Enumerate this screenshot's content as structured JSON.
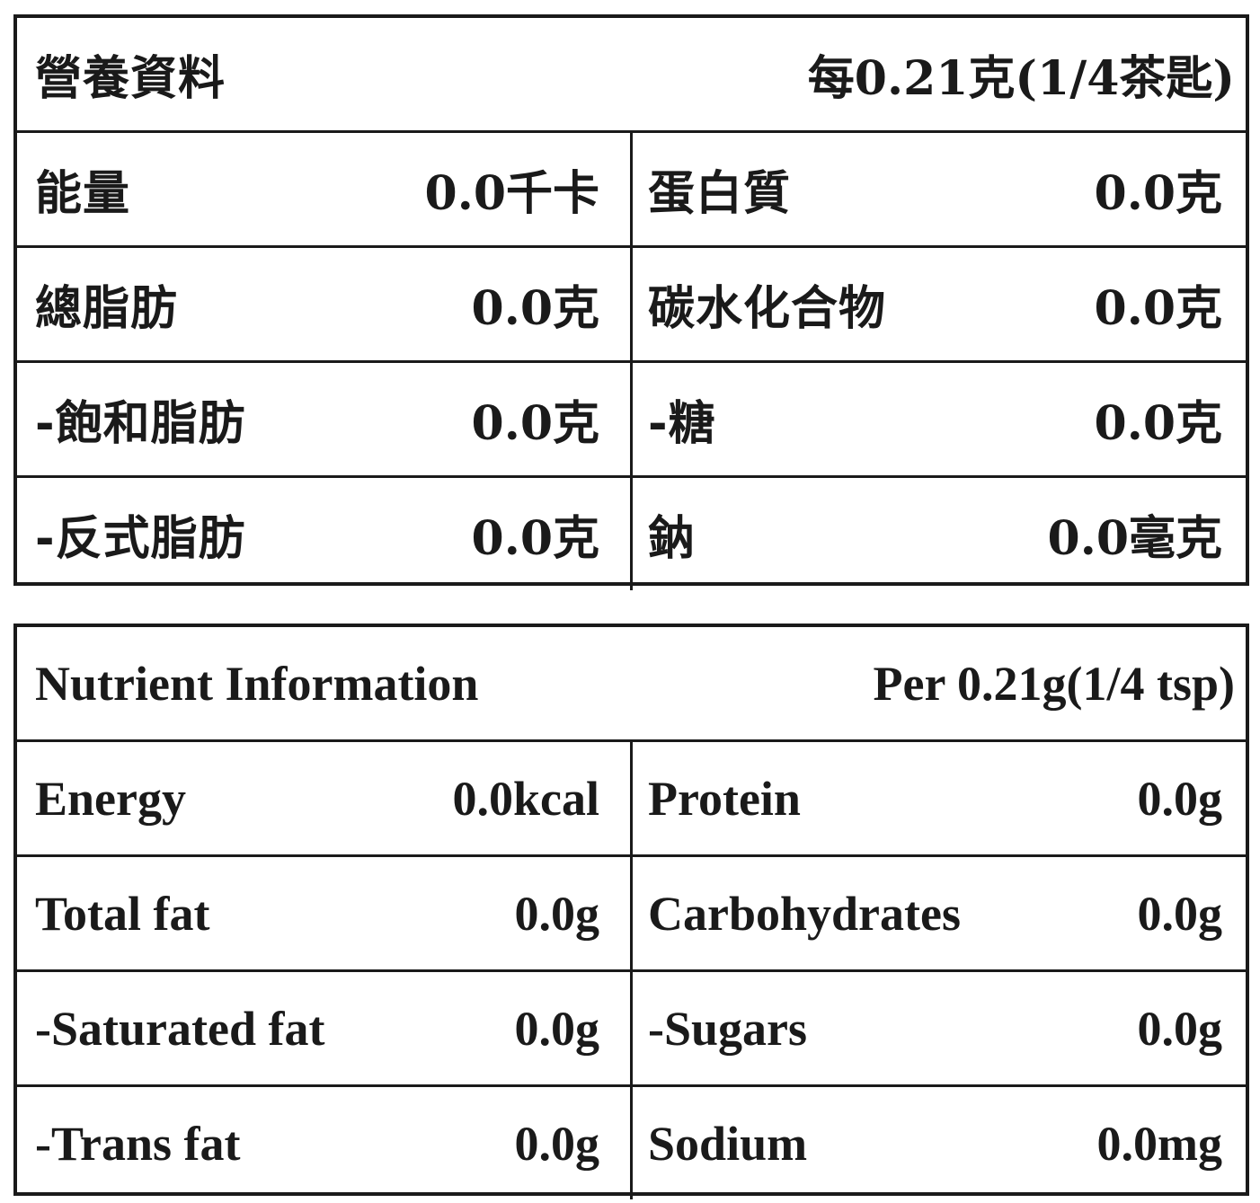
{
  "chinese": {
    "title": "營養資料",
    "serving": "每0.21克(1/4茶匙)",
    "rows": [
      {
        "left_label": "能量",
        "left_value": "0.0千卡",
        "right_label": "蛋白質",
        "right_value": "0.0克"
      },
      {
        "left_label": "總脂肪",
        "left_value": "0.0克",
        "right_label": "碳水化合物",
        "right_value": "0.0克"
      },
      {
        "left_label": "-飽和脂肪",
        "left_value": "0.0克",
        "right_label": "-糖",
        "right_value": "0.0克"
      },
      {
        "left_label": "-反式脂肪",
        "left_value": "0.0克",
        "right_label": "鈉",
        "right_value": "0.0毫克"
      }
    ]
  },
  "english": {
    "title": "Nutrient Information",
    "serving": "Per 0.21g(1/4 tsp)",
    "rows": [
      {
        "left_label": "Energy",
        "left_value": "0.0kcal",
        "right_label": "Protein",
        "right_value": "0.0g"
      },
      {
        "left_label": "Total fat",
        "left_value": "0.0g",
        "right_label": "Carbohydrates",
        "right_value": "0.0g"
      },
      {
        "left_label": "-Saturated fat",
        "left_value": "0.0g",
        "right_label": "-Sugars",
        "right_value": "0.0g"
      },
      {
        "left_label": "-Trans fat",
        "left_value": "0.0g",
        "right_label": "Sodium",
        "right_value": "0.0mg"
      }
    ]
  }
}
